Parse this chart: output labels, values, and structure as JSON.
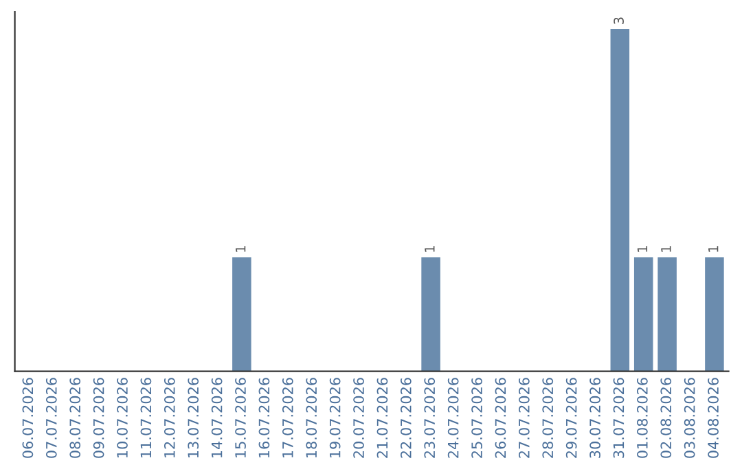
{
  "chart_data": {
    "type": "bar",
    "categories": [
      "06.07.2026",
      "07.07.2026",
      "08.07.2026",
      "09.07.2026",
      "10.07.2026",
      "11.07.2026",
      "12.07.2026",
      "13.07.2026",
      "14.07.2026",
      "15.07.2026",
      "16.07.2026",
      "17.07.2026",
      "18.07.2026",
      "19.07.2026",
      "20.07.2026",
      "21.07.2026",
      "22.07.2026",
      "23.07.2026",
      "24.07.2026",
      "25.07.2026",
      "26.07.2026",
      "27.07.2026",
      "28.07.2026",
      "29.07.2026",
      "30.07.2026",
      "31.07.2026",
      "01.08.2026",
      "02.08.2026",
      "03.08.2026",
      "04.08.2026"
    ],
    "values": [
      0,
      0,
      0,
      0,
      0,
      0,
      0,
      0,
      0,
      1,
      0,
      0,
      0,
      0,
      0,
      0,
      0,
      1,
      0,
      0,
      0,
      0,
      0,
      0,
      0,
      3,
      1,
      1,
      0,
      1
    ],
    "value_labels": [
      null,
      null,
      null,
      null,
      null,
      null,
      null,
      null,
      null,
      "1",
      null,
      null,
      null,
      null,
      null,
      null,
      null,
      "1",
      null,
      null,
      null,
      null,
      null,
      null,
      null,
      "3",
      "1",
      "1",
      null,
      "1"
    ],
    "color": "#6b8cae",
    "grid": false,
    "tick_labels": "x"
  }
}
